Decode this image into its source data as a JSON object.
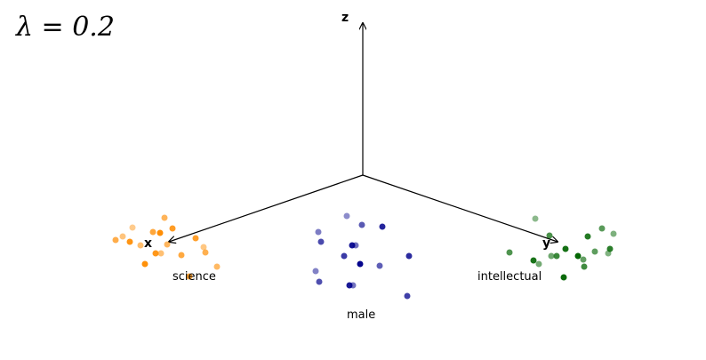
{
  "lambda_label": "λ = 0.2",
  "axes": {
    "x": "x",
    "y": "y",
    "z": "z"
  },
  "clusters": [
    {
      "id": "science",
      "label": "science",
      "color": "#ff8c00"
    },
    {
      "id": "male",
      "label": "male",
      "color": "#00008b"
    },
    {
      "id": "intellectual",
      "label": "intellectual",
      "color": "#006400"
    }
  ]
}
